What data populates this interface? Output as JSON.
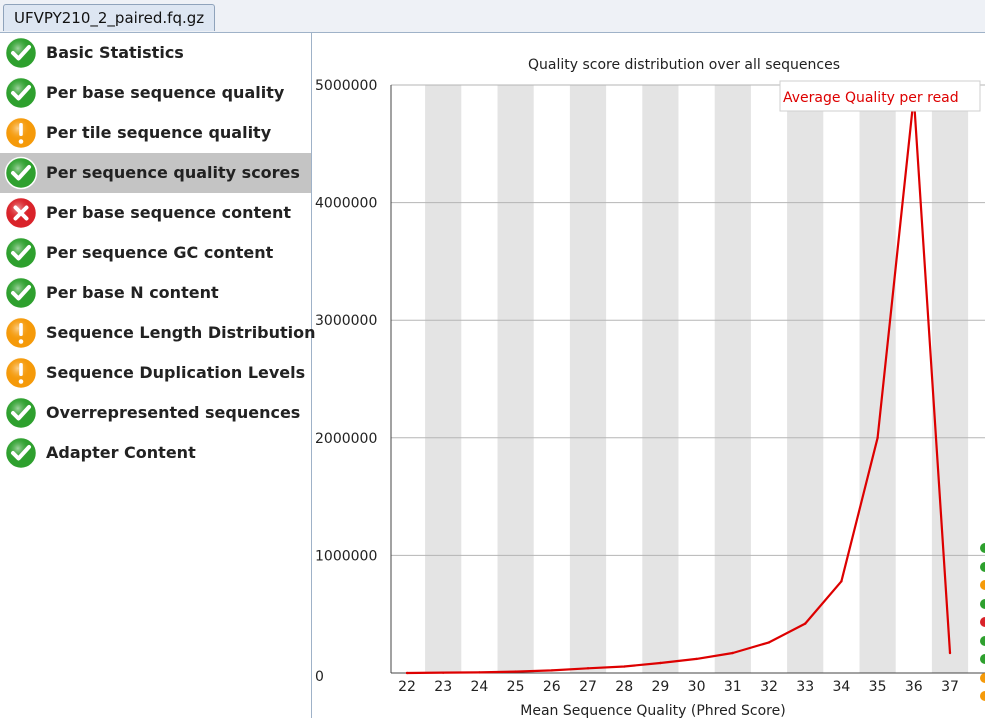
{
  "tab": {
    "filename": "UFVPY210_2_paired.fq.gz"
  },
  "modules": [
    {
      "label": "Basic Statistics",
      "status": "pass"
    },
    {
      "label": "Per base sequence quality",
      "status": "pass"
    },
    {
      "label": "Per tile sequence quality",
      "status": "warn"
    },
    {
      "label": "Per sequence quality scores",
      "status": "pass",
      "selected": true
    },
    {
      "label": "Per base sequence content",
      "status": "fail"
    },
    {
      "label": "Per sequence GC content",
      "status": "pass"
    },
    {
      "label": "Per base N content",
      "status": "pass"
    },
    {
      "label": "Sequence Length Distribution",
      "status": "warn"
    },
    {
      "label": "Sequence Duplication Levels",
      "status": "warn"
    },
    {
      "label": "Overrepresented sequences",
      "status": "pass"
    },
    {
      "label": "Adapter Content",
      "status": "pass"
    }
  ],
  "status_colors": {
    "pass": "#2ea02e",
    "warn": "#f59a0a",
    "fail": "#d9232a"
  },
  "chart_data": {
    "type": "line",
    "title": "Quality score distribution over all sequences",
    "xlabel": "Mean Sequence Quality (Phred Score)",
    "ylabel": "",
    "x": [
      22,
      23,
      24,
      25,
      26,
      27,
      28,
      29,
      30,
      31,
      32,
      33,
      34,
      35,
      36,
      37
    ],
    "series": [
      {
        "name": "Average Quality per read",
        "color": "#dd0000",
        "values": [
          0,
          3000,
          5000,
          12000,
          22000,
          40000,
          55000,
          85000,
          120000,
          170000,
          260000,
          420000,
          780000,
          2000000,
          4900000,
          170000
        ]
      }
    ],
    "ylim": [
      0,
      5000000
    ],
    "yticks": [
      0,
      1000000,
      2000000,
      3000000,
      4000000,
      5000000
    ],
    "ytick_labels": [
      "0",
      "1000000",
      "2000000",
      "3000000",
      "4000000",
      "5000000"
    ],
    "grid": true,
    "legend": "top-right"
  },
  "edge_strip_colors": [
    "#2ea02e",
    "#2ea02e",
    "#f59a0a",
    "#2ea02e",
    "#d9232a",
    "#2ea02e",
    "#2ea02e",
    "#f59a0a",
    "#f59a0a"
  ]
}
